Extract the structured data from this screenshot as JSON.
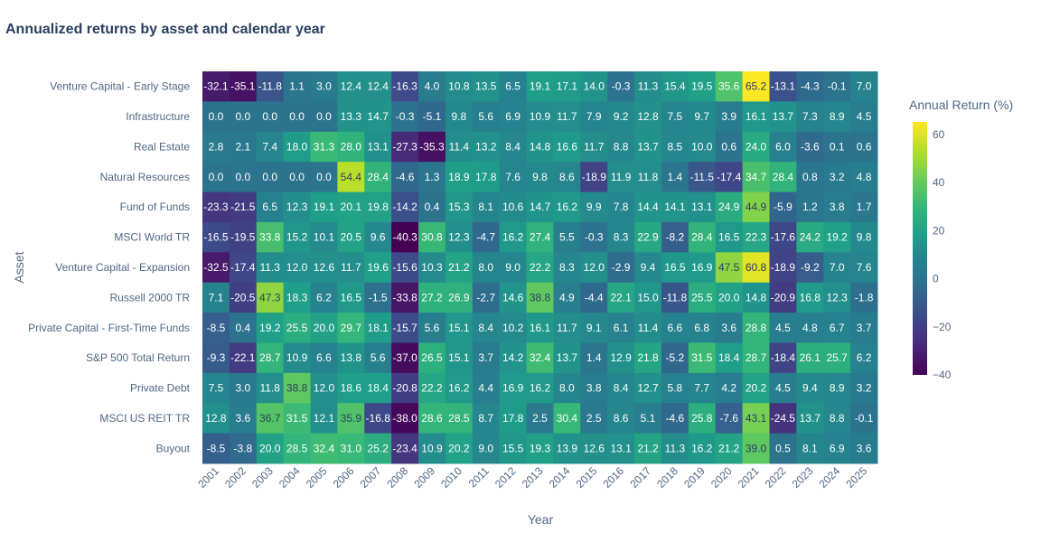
{
  "chart_data": {
    "type": "heatmap",
    "title": "Annualized returns by asset and calendar year",
    "xlabel": "Year",
    "ylabel": "Asset",
    "colorbar_title": "Annual Return (%)",
    "colorscale": "viridis",
    "zlim": [
      -40,
      65.2
    ],
    "colorbar_ticks": [
      60,
      40,
      20,
      0,
      -20,
      -40
    ],
    "colorbar_tick_labels": [
      "60",
      "40",
      "20",
      "0",
      "−20",
      "−40"
    ],
    "x": [
      "2001",
      "2002",
      "2003",
      "2004",
      "2005",
      "2006",
      "2007",
      "2008",
      "2009",
      "2010",
      "2011",
      "2012",
      "2013",
      "2014",
      "2015",
      "2016",
      "2017",
      "2018",
      "2019",
      "2020",
      "2021",
      "2022",
      "2023",
      "2024",
      "2025"
    ],
    "y": [
      "Venture Capital - Early Stage",
      "Infrastructure",
      "Real Estate",
      "Natural Resources",
      "Fund of Funds",
      "MSCI World TR",
      "Venture Capital - Expansion",
      "Russell 2000 TR",
      "Private Capital - First-Time Funds",
      "S&P 500 Total Return",
      "Private Debt",
      "MSCI US REIT TR",
      "Buyout"
    ],
    "z": [
      [
        -32.1,
        -35.1,
        -11.8,
        1.1,
        3.0,
        12.4,
        12.4,
        -16.3,
        4.0,
        10.8,
        13.5,
        6.5,
        19.1,
        17.1,
        14.0,
        -0.3,
        11.3,
        15.4,
        19.5,
        35.6,
        65.2,
        -13.1,
        -4.3,
        -0.1,
        7.0
      ],
      [
        0.0,
        0.0,
        0.0,
        0.0,
        0.0,
        13.3,
        14.7,
        -0.3,
        -5.1,
        9.8,
        5.6,
        6.9,
        10.9,
        11.7,
        7.9,
        9.2,
        12.8,
        7.5,
        9.7,
        3.9,
        16.1,
        13.7,
        7.3,
        8.9,
        4.5
      ],
      [
        2.8,
        2.1,
        7.4,
        18.0,
        31.3,
        28.0,
        13.1,
        -27.3,
        -35.3,
        11.4,
        13.2,
        8.4,
        14.8,
        16.6,
        11.7,
        8.8,
        13.7,
        8.5,
        10.0,
        0.6,
        24.0,
        6.0,
        -3.6,
        0.1,
        0.6
      ],
      [
        0.0,
        0.0,
        0.0,
        0.0,
        0.0,
        54.4,
        28.4,
        -4.6,
        1.3,
        18.9,
        17.8,
        7.6,
        9.8,
        8.6,
        -18.9,
        11.9,
        11.8,
        1.4,
        -11.5,
        -17.4,
        34.7,
        28.4,
        0.8,
        3.2,
        4.8
      ],
      [
        -23.3,
        -21.5,
        6.5,
        12.3,
        19.1,
        20.1,
        19.8,
        -14.2,
        0.4,
        15.3,
        8.1,
        10.6,
        14.7,
        16.2,
        9.9,
        7.8,
        14.4,
        14.1,
        13.1,
        24.9,
        44.9,
        -5.9,
        1.2,
        3.8,
        1.7
      ],
      [
        -16.5,
        -19.5,
        33.8,
        15.2,
        10.1,
        20.5,
        9.6,
        -40.3,
        30.8,
        12.3,
        -4.7,
        16.2,
        27.4,
        5.5,
        -0.3,
        8.3,
        22.9,
        -8.2,
        28.4,
        16.5,
        22.3,
        -17.6,
        24.2,
        19.2,
        9.8
      ],
      [
        -32.5,
        -17.4,
        11.3,
        12.0,
        12.6,
        11.7,
        19.6,
        -15.6,
        10.3,
        21.2,
        8.0,
        9.0,
        22.2,
        8.3,
        12.0,
        -2.9,
        9.4,
        16.5,
        16.9,
        47.5,
        60.8,
        -18.9,
        -9.2,
        7.0,
        7.6
      ],
      [
        7.1,
        -20.5,
        47.3,
        18.3,
        6.2,
        16.5,
        -1.5,
        -33.8,
        27.2,
        26.9,
        -2.7,
        14.6,
        38.8,
        4.9,
        -4.4,
        22.1,
        15.0,
        -11.8,
        25.5,
        20.0,
        14.8,
        -20.9,
        16.8,
        12.3,
        -1.8
      ],
      [
        -8.5,
        0.4,
        19.2,
        25.5,
        20.0,
        29.7,
        18.1,
        -15.7,
        5.6,
        15.1,
        8.4,
        10.2,
        16.1,
        11.7,
        9.1,
        6.1,
        11.4,
        6.6,
        6.8,
        3.6,
        28.8,
        4.5,
        4.8,
        6.7,
        3.7
      ],
      [
        -9.3,
        -22.1,
        28.7,
        10.9,
        6.6,
        13.8,
        5.6,
        -37.0,
        26.5,
        15.1,
        3.7,
        14.2,
        32.4,
        13.7,
        1.4,
        12.9,
        21.8,
        -5.2,
        31.5,
        18.4,
        28.7,
        -18.4,
        26.1,
        25.7,
        6.2
      ],
      [
        7.5,
        3.0,
        11.8,
        38.8,
        12.0,
        18.6,
        18.4,
        -20.8,
        22.2,
        16.2,
        4.4,
        16.9,
        16.2,
        8.0,
        3.8,
        8.4,
        12.7,
        5.8,
        7.7,
        4.2,
        20.2,
        4.5,
        9.4,
        8.9,
        3.2
      ],
      [
        12.8,
        3.6,
        36.7,
        31.5,
        12.1,
        35.9,
        -16.8,
        -38.0,
        28.6,
        28.5,
        8.7,
        17.8,
        2.5,
        30.4,
        2.5,
        8.6,
        5.1,
        -4.6,
        25.8,
        -7.6,
        43.1,
        -24.5,
        13.7,
        8.8,
        -0.1
      ],
      [
        -8.5,
        -3.8,
        20.0,
        28.5,
        32.4,
        31.0,
        25.2,
        -23.4,
        10.9,
        20.2,
        9.0,
        15.5,
        19.3,
        13.9,
        12.6,
        13.1,
        21.2,
        11.3,
        16.2,
        21.2,
        39.0,
        0.5,
        8.1,
        6.9,
        3.6
      ]
    ]
  }
}
